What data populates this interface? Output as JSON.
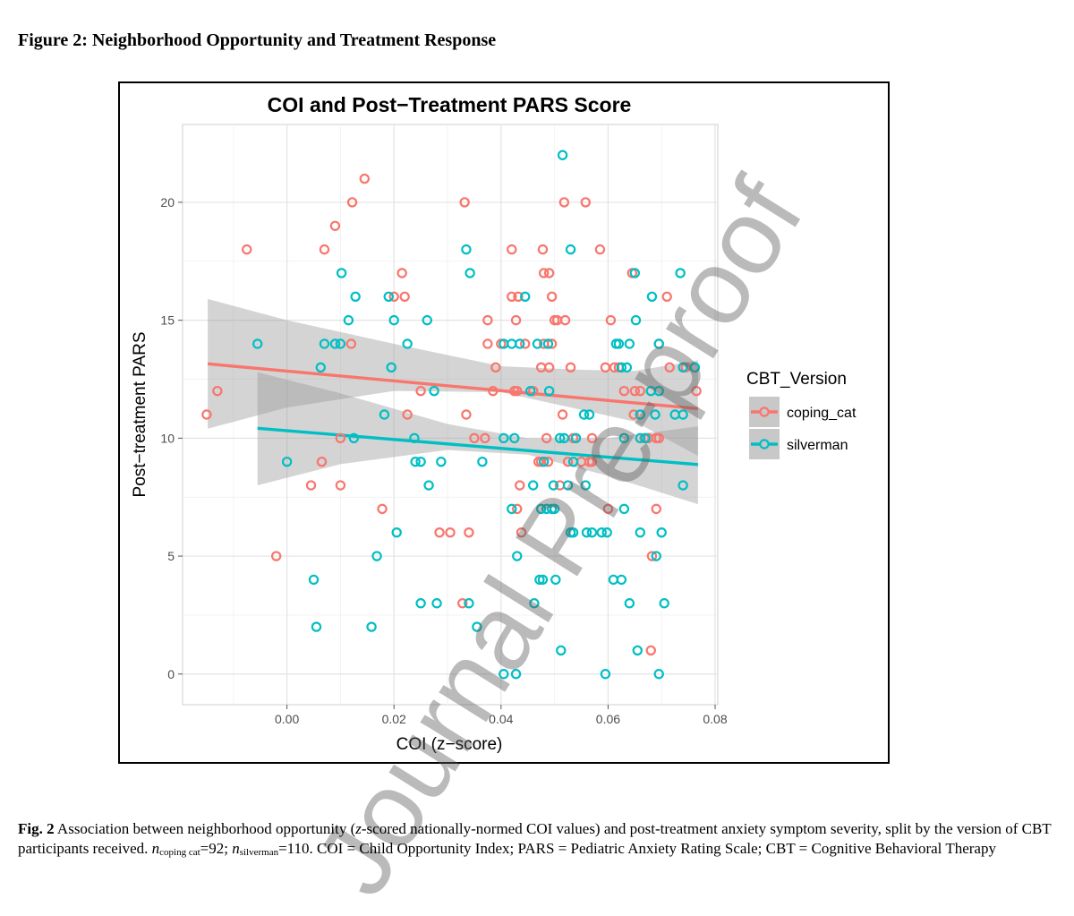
{
  "page": {
    "heading": "Figure 2: Neighborhood Opportunity and Treatment Response",
    "caption": {
      "fig_label": "Fig. 2",
      "text_1": " Association between neighborhood opportunity (",
      "z_italic": "z",
      "text_2": "-scored nationally-normed COI values) and post-treatment anxiety symptom severity, split by the version of CBT participants received. ",
      "n_symbol_1": "n",
      "n_sub_1": "coping cat",
      "n_val_1": "=92; ",
      "n_symbol_2": "n",
      "n_sub_2": "silverman",
      "n_val_2": "=110. COI = Child Opportunity Index; PARS = Pediatric Anxiety Rating Scale; CBT = Cognitive Behavioral Therapy"
    },
    "watermark": "Journal Pre-proof"
  },
  "chart_data": {
    "type": "scatter",
    "title": "COI and Post−Treatment PARS Score",
    "xlabel": "COI (z−score)",
    "ylabel": "Post−treatment PARS",
    "xlim": [
      -0.0195,
      0.0805
    ],
    "ylim": [
      -1.3,
      23.3
    ],
    "x_ticks": [
      0.0,
      0.02,
      0.04,
      0.06,
      0.08
    ],
    "x_tick_labels": [
      "0.00",
      "0.02",
      "0.04",
      "0.06",
      "0.08"
    ],
    "y_ticks": [
      0,
      5,
      10,
      15,
      20
    ],
    "y_tick_labels": [
      "0",
      "5",
      "10",
      "15",
      "20"
    ],
    "grid": true,
    "legend": {
      "title": "CBT_Version",
      "position": "right"
    },
    "series": [
      {
        "name": "coping_cat",
        "color": "#F8766D",
        "points": [
          [
            -0.015,
            11
          ],
          [
            -0.013,
            12
          ],
          [
            -0.0075,
            18
          ],
          [
            -0.002,
            5
          ],
          [
            0.0045,
            8
          ],
          [
            0.0065,
            9
          ],
          [
            0.007,
            18
          ],
          [
            0.009,
            19
          ],
          [
            0.01,
            8
          ],
          [
            0.01,
            10
          ],
          [
            0.012,
            14
          ],
          [
            0.0122,
            20
          ],
          [
            0.0145,
            21
          ],
          [
            0.0178,
            7
          ],
          [
            0.02,
            16
          ],
          [
            0.0215,
            17
          ],
          [
            0.022,
            16
          ],
          [
            0.0225,
            11
          ],
          [
            0.025,
            12
          ],
          [
            0.0285,
            6
          ],
          [
            0.0305,
            6
          ],
          [
            0.0328,
            3
          ],
          [
            0.0332,
            20
          ],
          [
            0.0335,
            11
          ],
          [
            0.034,
            6
          ],
          [
            0.035,
            10
          ],
          [
            0.037,
            10
          ],
          [
            0.0375,
            14
          ],
          [
            0.0375,
            15
          ],
          [
            0.0385,
            12
          ],
          [
            0.039,
            13
          ],
          [
            0.04,
            14
          ],
          [
            0.042,
            18
          ],
          [
            0.042,
            16
          ],
          [
            0.0425,
            12
          ],
          [
            0.0428,
            15
          ],
          [
            0.043,
            7
          ],
          [
            0.0432,
            16
          ],
          [
            0.0435,
            8
          ],
          [
            0.0438,
            6
          ],
          [
            0.0445,
            14
          ],
          [
            0.046,
            12
          ],
          [
            0.047,
            9
          ],
          [
            0.0475,
            13
          ],
          [
            0.0478,
            18
          ],
          [
            0.048,
            17
          ],
          [
            0.048,
            14
          ],
          [
            0.0485,
            10
          ],
          [
            0.0488,
            9
          ],
          [
            0.049,
            13
          ],
          [
            0.049,
            17
          ],
          [
            0.0495,
            16
          ],
          [
            0.0495,
            14
          ],
          [
            0.05,
            15
          ],
          [
            0.0505,
            15
          ],
          [
            0.051,
            8
          ],
          [
            0.0515,
            11
          ],
          [
            0.0518,
            20
          ],
          [
            0.052,
            15
          ],
          [
            0.0525,
            9
          ],
          [
            0.053,
            13
          ],
          [
            0.0535,
            10
          ],
          [
            0.055,
            9
          ],
          [
            0.0558,
            20
          ],
          [
            0.0565,
            9
          ],
          [
            0.057,
            10
          ],
          [
            0.0585,
            18
          ],
          [
            0.0595,
            13
          ],
          [
            0.06,
            7
          ],
          [
            0.0605,
            15
          ],
          [
            0.0612,
            13
          ],
          [
            0.062,
            13
          ],
          [
            0.063,
            12
          ],
          [
            0.0645,
            17
          ],
          [
            0.0648,
            11
          ],
          [
            0.065,
            12
          ],
          [
            0.066,
            12
          ],
          [
            0.0668,
            10
          ],
          [
            0.0675,
            10
          ],
          [
            0.068,
            1
          ],
          [
            0.0682,
            5
          ],
          [
            0.069,
            10
          ],
          [
            0.069,
            7
          ],
          [
            0.0695,
            10
          ],
          [
            0.0695,
            14
          ],
          [
            0.071,
            16
          ],
          [
            0.0715,
            13
          ],
          [
            0.0765,
            12
          ],
          [
            0.0745,
            13
          ],
          [
            0.043,
            12
          ],
          [
            0.0475,
            9
          ],
          [
            0.057,
            9
          ]
        ],
        "fit": {
          "x": [
            -0.0148,
            0.0768
          ],
          "y": [
            13.15,
            11.25
          ]
        }
      },
      {
        "name": "silverman",
        "color": "#00BFC4",
        "points": [
          [
            -0.0055,
            14
          ],
          [
            0.0,
            9
          ],
          [
            0.005,
            4
          ],
          [
            0.0055,
            2
          ],
          [
            0.0063,
            13
          ],
          [
            0.007,
            14
          ],
          [
            0.009,
            14
          ],
          [
            0.01,
            14
          ],
          [
            0.0102,
            17
          ],
          [
            0.0115,
            15
          ],
          [
            0.0125,
            10
          ],
          [
            0.0128,
            16
          ],
          [
            0.0158,
            2
          ],
          [
            0.0168,
            5
          ],
          [
            0.0182,
            11
          ],
          [
            0.019,
            16
          ],
          [
            0.0195,
            13
          ],
          [
            0.02,
            15
          ],
          [
            0.0205,
            6
          ],
          [
            0.0225,
            14
          ],
          [
            0.0238,
            10
          ],
          [
            0.024,
            9
          ],
          [
            0.025,
            9
          ],
          [
            0.025,
            3
          ],
          [
            0.0262,
            15
          ],
          [
            0.0265,
            8
          ],
          [
            0.0275,
            12
          ],
          [
            0.028,
            3
          ],
          [
            0.0288,
            9
          ],
          [
            0.0335,
            18
          ],
          [
            0.034,
            3
          ],
          [
            0.0342,
            17
          ],
          [
            0.0355,
            2
          ],
          [
            0.0365,
            9
          ],
          [
            0.0405,
            14
          ],
          [
            0.0405,
            10
          ],
          [
            0.0405,
            0
          ],
          [
            0.042,
            7
          ],
          [
            0.042,
            14
          ],
          [
            0.0425,
            10
          ],
          [
            0.0428,
            0
          ],
          [
            0.043,
            5
          ],
          [
            0.0435,
            14
          ],
          [
            0.0445,
            16
          ],
          [
            0.0455,
            12
          ],
          [
            0.046,
            8
          ],
          [
            0.0462,
            3
          ],
          [
            0.0468,
            14
          ],
          [
            0.0472,
            4
          ],
          [
            0.0475,
            7
          ],
          [
            0.0478,
            4
          ],
          [
            0.048,
            9
          ],
          [
            0.0485,
            7
          ],
          [
            0.0488,
            14
          ],
          [
            0.049,
            12
          ],
          [
            0.0495,
            7
          ],
          [
            0.0498,
            8
          ],
          [
            0.05,
            7
          ],
          [
            0.0502,
            4
          ],
          [
            0.051,
            10
          ],
          [
            0.0512,
            1
          ],
          [
            0.0515,
            22
          ],
          [
            0.0518,
            10
          ],
          [
            0.0525,
            8
          ],
          [
            0.053,
            18
          ],
          [
            0.053,
            6
          ],
          [
            0.0535,
            6
          ],
          [
            0.0535,
            9
          ],
          [
            0.054,
            10
          ],
          [
            0.0555,
            11
          ],
          [
            0.0558,
            8
          ],
          [
            0.056,
            6
          ],
          [
            0.0565,
            11
          ],
          [
            0.057,
            6
          ],
          [
            0.0588,
            6
          ],
          [
            0.0595,
            0
          ],
          [
            0.0598,
            6
          ],
          [
            0.061,
            4
          ],
          [
            0.0615,
            14
          ],
          [
            0.062,
            14
          ],
          [
            0.0625,
            4
          ],
          [
            0.0625,
            13
          ],
          [
            0.063,
            10
          ],
          [
            0.063,
            7
          ],
          [
            0.0635,
            13
          ],
          [
            0.064,
            14
          ],
          [
            0.064,
            3
          ],
          [
            0.065,
            17
          ],
          [
            0.0652,
            15
          ],
          [
            0.0655,
            1
          ],
          [
            0.066,
            10
          ],
          [
            0.066,
            11
          ],
          [
            0.066,
            6
          ],
          [
            0.067,
            10
          ],
          [
            0.0682,
            16
          ],
          [
            0.068,
            12
          ],
          [
            0.0688,
            11
          ],
          [
            0.069,
            5
          ],
          [
            0.0695,
            12
          ],
          [
            0.0695,
            14
          ],
          [
            0.0695,
            0
          ],
          [
            0.07,
            6
          ],
          [
            0.0705,
            3
          ],
          [
            0.0725,
            11
          ],
          [
            0.0735,
            17
          ],
          [
            0.074,
            13
          ],
          [
            0.074,
            11
          ],
          [
            0.074,
            8
          ],
          [
            0.0762,
            13
          ],
          [
            0.0762,
            13
          ]
        ],
        "fit": {
          "x": [
            -0.0055,
            0.0768
          ],
          "y": [
            10.42,
            8.88
          ]
        }
      }
    ],
    "confidence_bands": [
      {
        "series": "coping_cat",
        "x": [
          -0.0148,
          0.0,
          0.02,
          0.04,
          0.055,
          0.065,
          0.0768
        ],
        "upper": [
          15.9,
          15.0,
          14.0,
          13.05,
          12.9,
          12.85,
          13.3
        ],
        "lower": [
          10.4,
          11.3,
          12.0,
          11.95,
          11.2,
          10.7,
          9.25
        ]
      },
      {
        "series": "silverman",
        "x": [
          -0.0055,
          0.01,
          0.03,
          0.045,
          0.06,
          0.0768
        ],
        "upper": [
          12.8,
          11.9,
          10.6,
          10.0,
          10.0,
          10.5
        ],
        "lower": [
          8.0,
          8.9,
          9.5,
          9.3,
          8.4,
          7.2
        ]
      }
    ]
  }
}
